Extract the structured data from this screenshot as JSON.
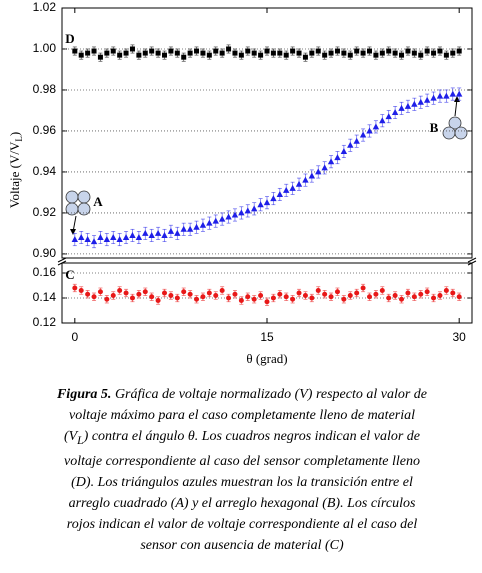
{
  "chart_data": {
    "type": "scatter",
    "x_label": "θ (grad)",
    "y_label": [
      "Voltaje (V/V",
      "L",
      ")"
    ],
    "xlim": [
      -1,
      31
    ],
    "xticks": [
      0,
      15,
      30
    ],
    "grid": true,
    "panels": [
      {
        "ylim": [
          0.898,
          1.02
        ],
        "yticks": [
          {
            "value": 0.9,
            "label": "0.90"
          },
          0.92,
          0.94,
          0.96,
          0.98,
          {
            "value": 1,
            "label": "1.00"
          },
          1.02
        ]
      },
      {
        "ylim": [
          0.12,
          0.168
        ],
        "yticks": [
          0.12,
          0.14,
          0.16
        ]
      }
    ],
    "x": [
      0,
      0.5,
      1,
      1.5,
      2,
      2.5,
      3,
      3.5,
      4,
      4.5,
      5,
      5.5,
      6,
      6.5,
      7,
      7.5,
      8,
      8.5,
      9,
      9.5,
      10,
      10.5,
      11,
      11.5,
      12,
      12.5,
      13,
      13.5,
      14,
      14.5,
      15,
      15.5,
      16,
      16.5,
      17,
      17.5,
      18,
      18.5,
      19,
      19.5,
      20,
      20.5,
      21,
      21.5,
      22,
      22.5,
      23,
      23.5,
      24,
      24.5,
      25,
      25.5,
      26,
      26.5,
      27,
      27.5,
      28,
      28.5,
      29,
      29.5,
      30
    ],
    "series": [
      {
        "name": "D",
        "marker": "square",
        "color": "#000000",
        "panel": 0,
        "error": 0.002,
        "values": [
          0.999,
          0.997,
          0.998,
          0.999,
          0.996,
          0.998,
          0.999,
          0.997,
          0.998,
          1.0,
          0.997,
          0.998,
          0.999,
          0.998,
          0.997,
          0.999,
          0.998,
          0.996,
          0.998,
          0.999,
          0.998,
          0.997,
          0.999,
          0.998,
          1.0,
          0.998,
          0.997,
          0.999,
          0.998,
          0.997,
          0.999,
          0.998,
          0.998,
          0.997,
          0.999,
          0.998,
          0.996,
          0.998,
          0.999,
          0.997,
          0.998,
          0.999,
          0.998,
          0.997,
          0.999,
          0.998,
          0.999,
          0.997,
          0.998,
          0.999,
          0.998,
          0.997,
          0.999,
          0.998,
          0.997,
          0.999,
          0.998,
          0.999,
          0.997,
          0.998,
          0.999
        ]
      },
      {
        "name": "A",
        "marker": "triangle",
        "color": "#1f1fe8",
        "panel": 0,
        "error": 0.003,
        "values": [
          0.907,
          0.908,
          0.907,
          0.906,
          0.908,
          0.907,
          0.908,
          0.907,
          0.908,
          0.909,
          0.908,
          0.91,
          0.909,
          0.91,
          0.909,
          0.911,
          0.91,
          0.912,
          0.912,
          0.913,
          0.914,
          0.915,
          0.916,
          0.917,
          0.918,
          0.919,
          0.92,
          0.921,
          0.922,
          0.924,
          0.925,
          0.927,
          0.929,
          0.931,
          0.932,
          0.934,
          0.936,
          0.938,
          0.94,
          0.942,
          0.945,
          0.947,
          0.95,
          0.953,
          0.955,
          0.958,
          0.96,
          0.962,
          0.965,
          0.967,
          0.969,
          0.971,
          0.972,
          0.973,
          0.974,
          0.975,
          0.976,
          0.977,
          0.977,
          0.978,
          0.978
        ]
      },
      {
        "name": "C",
        "marker": "circle",
        "color": "#e81818",
        "panel": 1,
        "error": 0.003,
        "values": [
          0.148,
          0.146,
          0.143,
          0.141,
          0.145,
          0.139,
          0.142,
          0.146,
          0.144,
          0.14,
          0.143,
          0.145,
          0.141,
          0.138,
          0.144,
          0.142,
          0.14,
          0.145,
          0.143,
          0.139,
          0.141,
          0.144,
          0.142,
          0.146,
          0.14,
          0.143,
          0.138,
          0.141,
          0.139,
          0.142,
          0.137,
          0.14,
          0.143,
          0.141,
          0.139,
          0.144,
          0.142,
          0.14,
          0.146,
          0.143,
          0.141,
          0.145,
          0.139,
          0.142,
          0.144,
          0.148,
          0.141,
          0.143,
          0.146,
          0.14,
          0.142,
          0.139,
          0.144,
          0.141,
          0.143,
          0.145,
          0.14,
          0.142,
          0.146,
          0.144,
          0.141
        ]
      }
    ],
    "annotations": [
      "D",
      "A",
      "B",
      "C"
    ],
    "caption_label": "Figura 5.",
    "caption": [
      " Gráfica de voltaje normalizado (V) respecto al valor de voltaje máximo para el caso completamente lleno de material (V",
      "L",
      ") contra el ángulo θ. Los cuadros negros indican el valor de voltaje correspondiente al caso del sensor completamente lleno (D). Los triángulos azules muestran los la transición entre el arreglo cuadrado (A) y el arreglo hexagonal (B). Los círculos rojos indican el valor de voltaje correspondiente al el caso del sensor con ausencia de material (C)"
    ]
  }
}
